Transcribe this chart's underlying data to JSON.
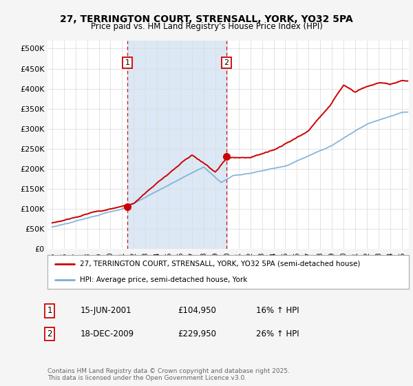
{
  "title_line1": "27, TERRINGTON COURT, STRENSALL, YORK, YO32 5PA",
  "title_line2": "Price paid vs. HM Land Registry's House Price Index (HPI)",
  "ylabel_ticks": [
    "£0",
    "£50K",
    "£100K",
    "£150K",
    "£200K",
    "£250K",
    "£300K",
    "£350K",
    "£400K",
    "£450K",
    "£500K"
  ],
  "ytick_values": [
    0,
    50000,
    100000,
    150000,
    200000,
    250000,
    300000,
    350000,
    400000,
    450000,
    500000
  ],
  "ylim": [
    0,
    520000
  ],
  "xlim_start": 1994.6,
  "xlim_end": 2025.6,
  "red_color": "#cc0000",
  "blue_color": "#7aaed6",
  "marker1_x": 2001.45,
  "marker1_y": 104950,
  "marker2_x": 2009.96,
  "marker2_y": 229950,
  "legend_label_red": "27, TERRINGTON COURT, STRENSALL, YORK, YO32 5PA (semi-detached house)",
  "legend_label_blue": "HPI: Average price, semi-detached house, York",
  "footnote": "Contains HM Land Registry data © Crown copyright and database right 2025.\nThis data is licensed under the Open Government Licence v3.0.",
  "table_rows": [
    {
      "num": "1",
      "date": "15-JUN-2001",
      "price": "£104,950",
      "hpi": "16% ↑ HPI"
    },
    {
      "num": "2",
      "date": "18-DEC-2009",
      "price": "£229,950",
      "hpi": "26% ↑ HPI"
    }
  ],
  "bg_color": "#f5f5f5",
  "plot_bg": "#ffffff",
  "grid_color": "#dddddd",
  "shade_color": "#dce8f5"
}
